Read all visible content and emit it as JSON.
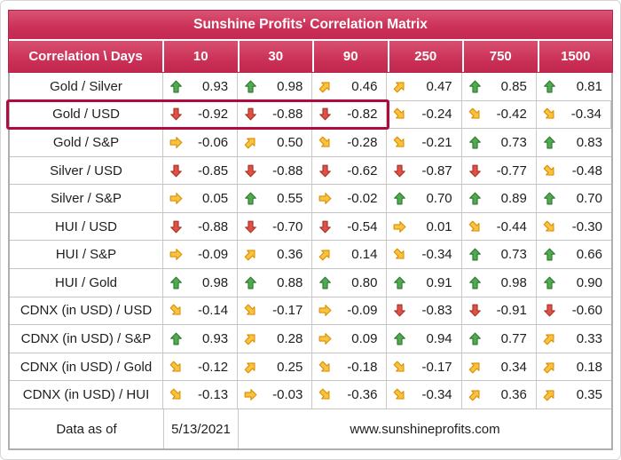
{
  "colors": {
    "crimson": "#ce3558",
    "crimson_light": "#db5373",
    "crimson_dark": "#c12750",
    "highlight_border": "#b00a3e",
    "outer_gray_border": "#aeaeae",
    "grid_line": "#c9c9c9",
    "arrow_green": "#53a953",
    "arrow_red": "#dd5147",
    "arrow_yellow": "#f6c342",
    "text": "#1e1e1e",
    "header_text": "#ffffff"
  },
  "icons": {
    "up": "up-arrow-icon",
    "down": "down-arrow-icon",
    "ne": "up-right-arrow-icon",
    "se": "down-right-arrow-icon",
    "right": "right-arrow-icon"
  },
  "footer": {
    "label": "Data as of",
    "date": "5/13/2021",
    "website": "www.sunshineprofits.com"
  },
  "chart_data": {
    "type": "table",
    "title": "Sunshine Profits' Correlation Matrix",
    "corner_label": "Correlation \\ Days",
    "columns": [
      "10",
      "30",
      "90",
      "250",
      "750",
      "1500"
    ],
    "rows": [
      {
        "label": "Gold / Silver",
        "values": [
          0.93,
          0.98,
          0.46,
          0.47,
          0.85,
          0.81
        ],
        "arrows": [
          "up",
          "up",
          "ne",
          "ne",
          "up",
          "up"
        ]
      },
      {
        "label": "Gold / USD",
        "values": [
          -0.92,
          -0.88,
          -0.82,
          -0.24,
          -0.42,
          -0.34
        ],
        "arrows": [
          "down",
          "down",
          "down",
          "se",
          "se",
          "se"
        ]
      },
      {
        "label": "Gold / S&P",
        "values": [
          -0.06,
          0.5,
          -0.28,
          -0.21,
          0.73,
          0.83
        ],
        "arrows": [
          "right",
          "ne",
          "se",
          "se",
          "up",
          "up"
        ]
      },
      {
        "label": "Silver / USD",
        "values": [
          -0.85,
          -0.88,
          -0.62,
          -0.87,
          -0.77,
          -0.48
        ],
        "arrows": [
          "down",
          "down",
          "down",
          "down",
          "down",
          "se"
        ]
      },
      {
        "label": "Silver / S&P",
        "values": [
          0.05,
          0.55,
          -0.02,
          0.7,
          0.89,
          0.7
        ],
        "arrows": [
          "right",
          "up",
          "right",
          "up",
          "up",
          "up"
        ]
      },
      {
        "label": "HUI / USD",
        "values": [
          -0.88,
          -0.7,
          -0.54,
          0.01,
          -0.44,
          -0.3
        ],
        "arrows": [
          "down",
          "down",
          "down",
          "right",
          "se",
          "se"
        ]
      },
      {
        "label": "HUI / S&P",
        "values": [
          -0.09,
          0.36,
          0.14,
          -0.34,
          0.73,
          0.66
        ],
        "arrows": [
          "right",
          "ne",
          "ne",
          "se",
          "up",
          "up"
        ]
      },
      {
        "label": "HUI / Gold",
        "values": [
          0.98,
          0.88,
          0.8,
          0.91,
          0.98,
          0.9
        ],
        "arrows": [
          "up",
          "up",
          "up",
          "up",
          "up",
          "up"
        ]
      },
      {
        "label": "CDNX (in USD) / USD",
        "values": [
          -0.14,
          -0.17,
          -0.09,
          -0.83,
          -0.91,
          -0.6
        ],
        "arrows": [
          "se",
          "se",
          "right",
          "down",
          "down",
          "down"
        ]
      },
      {
        "label": "CDNX (in USD) / S&P",
        "values": [
          0.93,
          0.28,
          0.09,
          0.94,
          0.77,
          0.33
        ],
        "arrows": [
          "up",
          "ne",
          "right",
          "up",
          "up",
          "ne"
        ]
      },
      {
        "label": "CDNX (in USD) / Gold",
        "values": [
          -0.12,
          0.25,
          -0.18,
          -0.17,
          0.34,
          0.18
        ],
        "arrows": [
          "se",
          "ne",
          "se",
          "se",
          "ne",
          "ne"
        ]
      },
      {
        "label": "CDNX (in USD) / HUI",
        "values": [
          -0.13,
          -0.03,
          -0.36,
          -0.34,
          0.36,
          0.35
        ],
        "arrows": [
          "se",
          "right",
          "se",
          "se",
          "ne",
          "ne"
        ]
      }
    ],
    "highlight": {
      "row_index": 1,
      "row_label": "Gold / USD",
      "columns": [
        "10",
        "30",
        "90"
      ]
    }
  }
}
